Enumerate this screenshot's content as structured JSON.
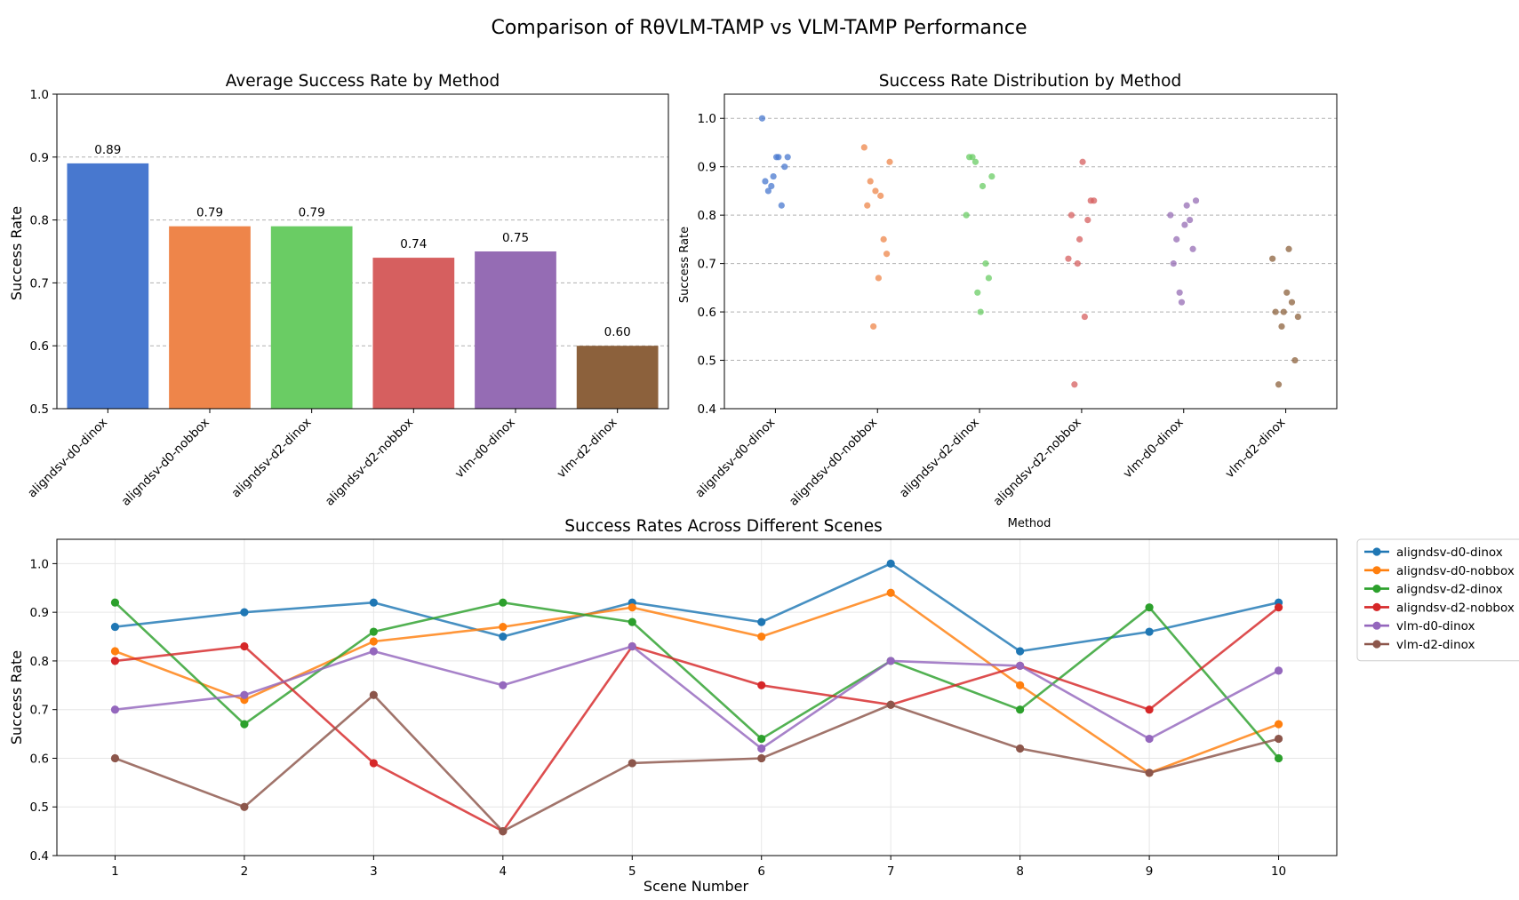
{
  "suptitle": "Comparison of RθVLM-TAMP vs VLM-TAMP Performance",
  "methods": [
    "aligndsv-d0-dinox",
    "aligndsv-d0-nobbox",
    "aligndsv-d2-dinox",
    "aligndsv-d2-nobbox",
    "vlm-d0-dinox",
    "vlm-d2-dinox"
  ],
  "colors": {
    "blue": "#4878cf",
    "orange": "#ee854a",
    "green": "#6acc64",
    "red": "#d65f5f",
    "purple": "#956cb4",
    "brown": "#8c613c",
    "line_blue": "#1f77b4",
    "line_orange": "#ff7f0e",
    "line_green": "#2ca02c",
    "line_red": "#d62728",
    "line_purple": "#9467bd",
    "line_brown": "#8c564b"
  },
  "chart_data": [
    {
      "type": "bar",
      "title": "Average Success Rate by Method",
      "xlabel": "",
      "ylabel": "Success Rate",
      "ylim": [
        0.5,
        1.0
      ],
      "yticks": [
        "0.5",
        "0.6",
        "0.7",
        "0.8",
        "0.9",
        "1.0"
      ],
      "categories": [
        "aligndsv-d0-dinox",
        "aligndsv-d0-nobbox",
        "aligndsv-d2-dinox",
        "aligndsv-d2-nobbox",
        "vlm-d0-dinox",
        "vlm-d2-dinox"
      ],
      "values": [
        0.89,
        0.79,
        0.79,
        0.74,
        0.75,
        0.6
      ],
      "data_labels": [
        "0.89",
        "0.79",
        "0.79",
        "0.74",
        "0.75",
        "0.60"
      ],
      "grid": "horizontal dashed"
    },
    {
      "type": "scatter",
      "title": "Success Rate Distribution by Method",
      "xlabel": "Method",
      "ylabel": "Success Rate",
      "ylim": [
        0.4,
        1.05
      ],
      "yticks": [
        "0.4",
        "0.5",
        "0.6",
        "0.7",
        "0.8",
        "0.9",
        "1.0"
      ],
      "categories": [
        "aligndsv-d0-dinox",
        "aligndsv-d0-nobbox",
        "aligndsv-d2-dinox",
        "aligndsv-d2-nobbox",
        "vlm-d0-dinox",
        "vlm-d2-dinox"
      ],
      "points": [
        [
          0.87,
          0.9,
          0.92,
          0.85,
          0.92,
          0.88,
          1.0,
          0.82,
          0.86,
          0.92
        ],
        [
          0.82,
          0.72,
          0.84,
          0.87,
          0.91,
          0.85,
          0.94,
          0.75,
          0.57,
          0.67
        ],
        [
          0.92,
          0.67,
          0.86,
          0.92,
          0.88,
          0.64,
          0.8,
          0.7,
          0.91,
          0.6
        ],
        [
          0.8,
          0.83,
          0.59,
          0.45,
          0.83,
          0.75,
          0.71,
          0.79,
          0.7,
          0.91
        ],
        [
          0.7,
          0.73,
          0.82,
          0.75,
          0.83,
          0.62,
          0.8,
          0.79,
          0.64,
          0.78
        ],
        [
          0.6,
          0.5,
          0.73,
          0.45,
          0.59,
          0.6,
          0.71,
          0.62,
          0.57,
          0.64
        ]
      ],
      "grid": "horizontal dashed"
    },
    {
      "type": "line",
      "title": "Success Rates Across Different Scenes",
      "xlabel": "Scene Number",
      "ylabel": "Success Rate",
      "x": [
        1,
        2,
        3,
        4,
        5,
        6,
        7,
        8,
        9,
        10
      ],
      "ylim": [
        0.4,
        1.05
      ],
      "yticks": [
        "0.4",
        "0.5",
        "0.6",
        "0.7",
        "0.8",
        "0.9",
        "1.0"
      ],
      "legend": "outside right",
      "grid": true,
      "series": [
        {
          "name": "aligndsv-d0-dinox",
          "values": [
            0.87,
            0.9,
            0.92,
            0.85,
            0.92,
            0.88,
            1.0,
            0.82,
            0.86,
            0.92
          ]
        },
        {
          "name": "aligndsv-d0-nobbox",
          "values": [
            0.82,
            0.72,
            0.84,
            0.87,
            0.91,
            0.85,
            0.94,
            0.75,
            0.57,
            0.67
          ]
        },
        {
          "name": "aligndsv-d2-dinox",
          "values": [
            0.92,
            0.67,
            0.86,
            0.92,
            0.88,
            0.64,
            0.8,
            0.7,
            0.91,
            0.6
          ]
        },
        {
          "name": "aligndsv-d2-nobbox",
          "values": [
            0.8,
            0.83,
            0.59,
            0.45,
            0.83,
            0.75,
            0.71,
            0.79,
            0.7,
            0.91
          ]
        },
        {
          "name": "vlm-d0-dinox",
          "values": [
            0.7,
            0.73,
            0.82,
            0.75,
            0.83,
            0.62,
            0.8,
            0.79,
            0.64,
            0.78
          ]
        },
        {
          "name": "vlm-d2-dinox",
          "values": [
            0.6,
            0.5,
            0.73,
            0.45,
            0.59,
            0.6,
            0.71,
            0.62,
            0.57,
            0.64
          ]
        }
      ]
    }
  ]
}
